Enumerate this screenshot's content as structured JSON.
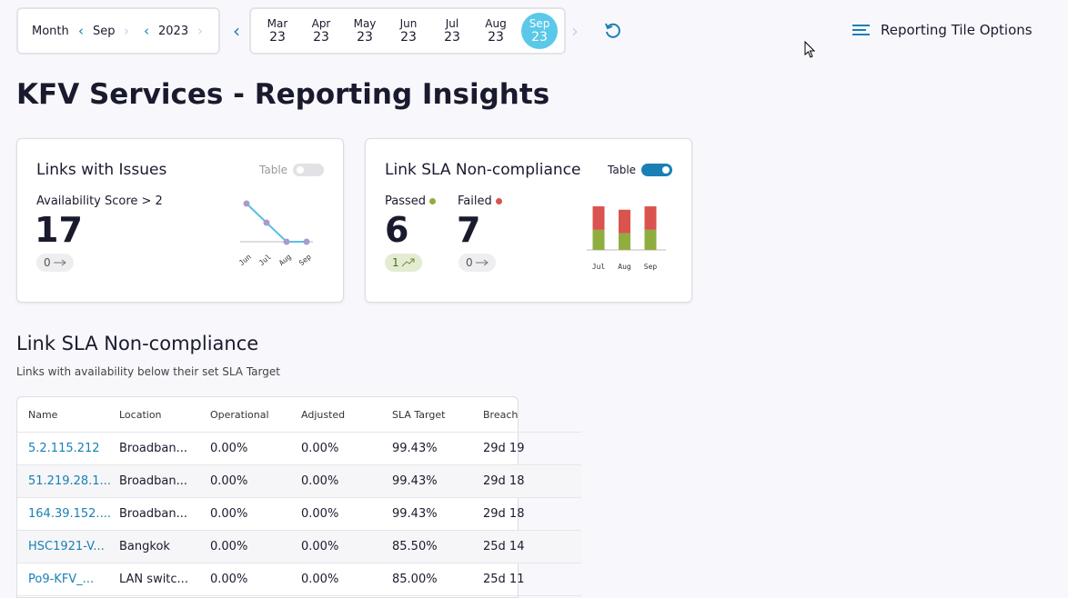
{
  "header": {
    "period_label": "Month",
    "month": "Sep",
    "year": "2023",
    "months": [
      {
        "month": "Mar",
        "year": "23"
      },
      {
        "month": "Apr",
        "year": "23"
      },
      {
        "month": "May",
        "year": "23"
      },
      {
        "month": "Jun",
        "year": "23"
      },
      {
        "month": "Jul",
        "year": "23"
      },
      {
        "month": "Aug",
        "year": "23"
      },
      {
        "month": "Sep",
        "year": "23"
      }
    ],
    "options": "Reporting Tile Options"
  },
  "title": "KFV Services - Reporting Insights",
  "tiles": [
    {
      "title": "Links with Issues",
      "toggle_label": "Table",
      "metric_label": "Availability Score > 2",
      "value": 17,
      "change": 0,
      "chart": {
        "type": "line",
        "categories": [
          "Jun",
          "Jul",
          "Aug",
          "Sep"
        ],
        "values": [
          2,
          1,
          0,
          0
        ],
        "ylim": [
          0,
          2
        ],
        "color": "#5bc0de"
      }
    },
    {
      "title": "Link SLA Non-compliance",
      "toggle_label": "Table",
      "metrics": [
        {
          "label": "Passed",
          "value": 6,
          "change": 1
        },
        {
          "label": "Failed",
          "value": 7,
          "change": 0
        }
      ],
      "chart": {
        "type": "bar",
        "categories": [
          "Jul",
          "Aug",
          "Sep"
        ],
        "ylim": [
          0,
          16
        ],
        "series": [
          {
            "color": "#8fae3f",
            "values": [
              6,
              5,
              6
            ]
          },
          {
            "color": "#d9534f",
            "values": [
              7,
              7,
              7
            ]
          }
        ]
      }
    }
  ],
  "section": {
    "title": "Link SLA Non-compliance",
    "subtitle": "Links with availability below their set SLA Target"
  },
  "table": {
    "columns": [
      "Name",
      "Location",
      "Operational",
      "Adjusted",
      "SLA Target",
      "Breach"
    ],
    "rows": [
      [
        "5.2.115.212",
        "Broadban...",
        "0.00%",
        "0.00%",
        "99.43%",
        "29d 19"
      ],
      [
        "51.219.28.1...",
        "Broadban...",
        "0.00%",
        "0.00%",
        "99.43%",
        "29d 18"
      ],
      [
        "164.39.152....",
        "Broadban...",
        "0.00%",
        "0.00%",
        "99.43%",
        "29d 18"
      ],
      [
        "HSC1921-V...",
        "Bangkok",
        "0.00%",
        "0.00%",
        "85.50%",
        "25d 14"
      ],
      [
        "Po9-KFV_...",
        "LAN switc...",
        "0.00%",
        "0.00%",
        "85.00%",
        "25d 11"
      ]
    ]
  }
}
